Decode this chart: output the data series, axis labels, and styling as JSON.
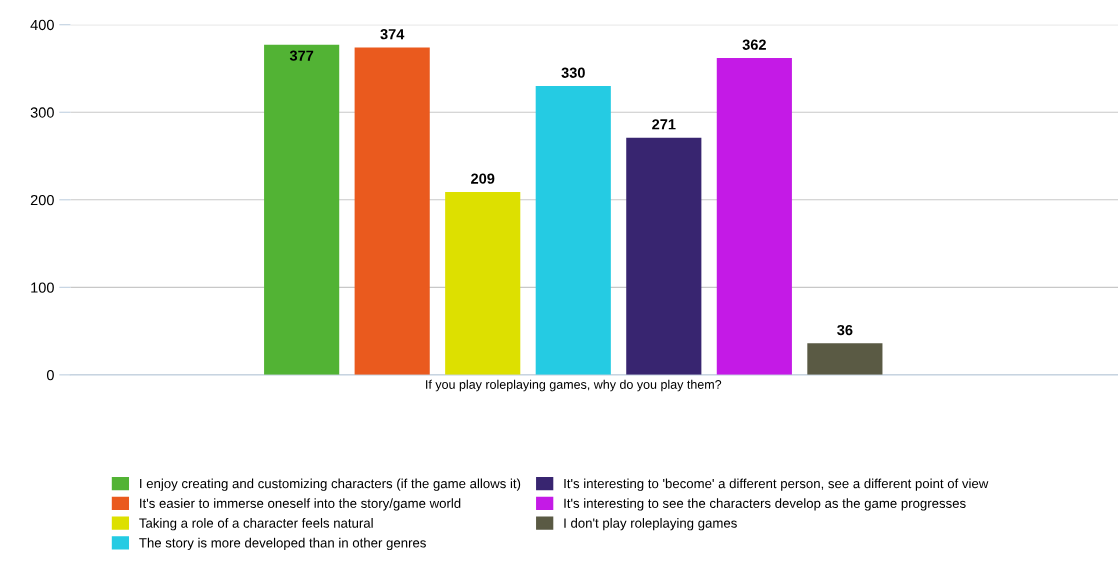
{
  "chart_data": {
    "type": "bar",
    "categories": [
      "If you play roleplaying games, why do you play them?"
    ],
    "series": [
      {
        "name": "I enjoy creating and customizing characters (if the game allows it)",
        "color": "#52b334",
        "values": [
          377
        ]
      },
      {
        "name": "It's easier to immerse oneself into the story/game world",
        "color": "#ea5a1e",
        "values": [
          374
        ]
      },
      {
        "name": "Taking a role of a character feels natural",
        "color": "#dde000",
        "values": [
          209
        ]
      },
      {
        "name": "The story is more developed than in other genres",
        "color": "#25cbe3",
        "values": [
          330
        ]
      },
      {
        "name": "It's interesting to 'become' a different person, see a different point of view",
        "color": "#382570",
        "values": [
          271
        ]
      },
      {
        "name": "It's interesting to see the characters develop as the game progresses",
        "color": "#c41ae6",
        "values": [
          362
        ]
      },
      {
        "name": "I don't play roleplaying games",
        "color": "#5a5a44",
        "values": [
          36
        ]
      }
    ],
    "ylim": [
      0,
      400
    ],
    "yticks": [
      0,
      100,
      200,
      300,
      400
    ],
    "grid": "y",
    "legend": "bottom",
    "data_labels": true
  }
}
